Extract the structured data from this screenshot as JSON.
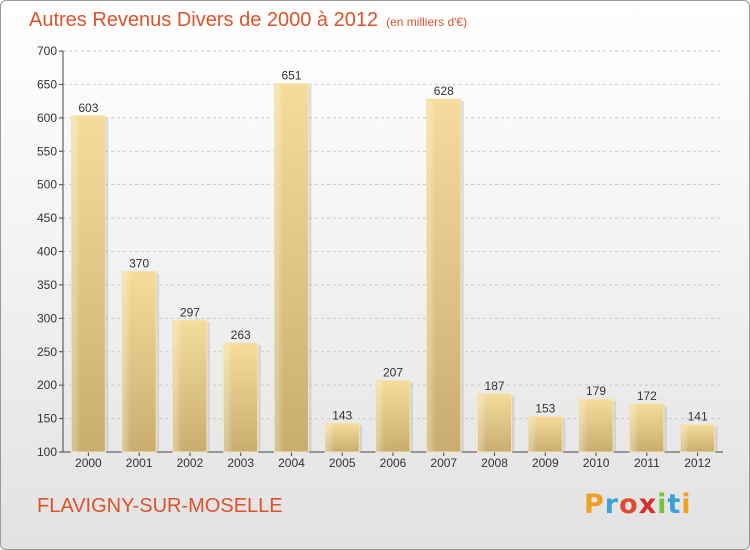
{
  "header": {
    "title": "Autres Revenus Divers de 2000 à 2012",
    "unit": "(en milliers d'€)"
  },
  "footer": {
    "commune": "FLAVIGNY-SUR-MOSELLE",
    "logo": {
      "letters": [
        "P",
        "r",
        "o",
        "x",
        "i",
        "t",
        "i"
      ],
      "colors": [
        "#f0a020",
        "#3aa0d8",
        "#e24b2f",
        "#d6302a",
        "#7ac143",
        "#3aa0d8",
        "#f0a020"
      ]
    }
  },
  "chart_data": {
    "type": "bar",
    "title": "Autres Revenus Divers de 2000 à 2012",
    "categories": [
      "2000",
      "2001",
      "2002",
      "2003",
      "2004",
      "2005",
      "2006",
      "2007",
      "2008",
      "2009",
      "2010",
      "2011",
      "2012"
    ],
    "values": [
      603,
      370,
      297,
      263,
      651,
      143,
      207,
      628,
      187,
      153,
      179,
      172,
      141
    ],
    "ylim": [
      100,
      700
    ],
    "yticks": [
      100,
      150,
      200,
      250,
      300,
      350,
      400,
      450,
      500,
      550,
      600,
      650,
      700
    ],
    "grid": true,
    "bar_color": "#ecd292"
  }
}
